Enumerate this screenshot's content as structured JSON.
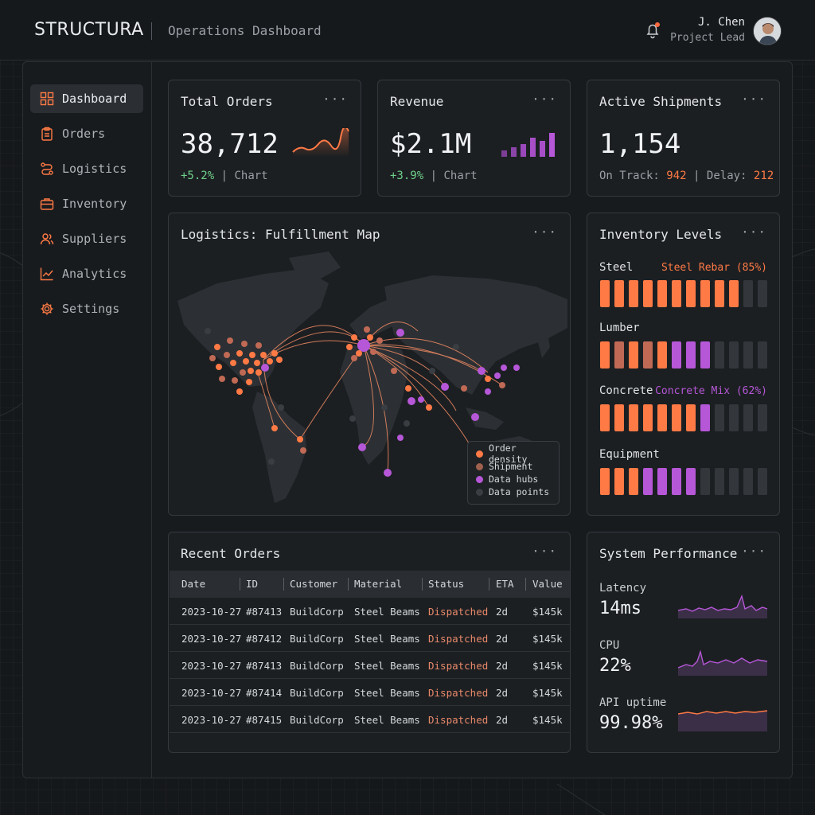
{
  "header": {
    "logo": "STRUCTURA",
    "title": "Operations Dashboard",
    "user_name": "J. Chen",
    "user_role": "Project Lead"
  },
  "sidebar": {
    "items": [
      {
        "label": "Dashboard",
        "icon": "dashboard-icon",
        "active": true
      },
      {
        "label": "Orders",
        "icon": "clipboard-icon"
      },
      {
        "label": "Logistics",
        "icon": "route-icon"
      },
      {
        "label": "Inventory",
        "icon": "briefcase-icon"
      },
      {
        "label": "Suppliers",
        "icon": "users-icon"
      },
      {
        "label": "Analytics",
        "icon": "line-chart-icon"
      },
      {
        "label": "Settings",
        "icon": "gear-icon"
      }
    ]
  },
  "kpis": {
    "orders": {
      "title": "Total Orders",
      "value": "38,712",
      "change": "+5.2%",
      "sep": "|",
      "link": "Chart"
    },
    "revenue": {
      "title": "Revenue",
      "value": "$2.1M",
      "change": "+3.9%",
      "sep": "|",
      "link": "Chart"
    },
    "shipments": {
      "title": "Active Shipments",
      "value": "1,154",
      "on_track_label": "On Track:",
      "on_track": "942",
      "sep": "|",
      "delay_label": "Delay:",
      "delay": "212"
    }
  },
  "map": {
    "title": "Logistics: Fulfillment Map",
    "legend": [
      "Order density",
      "Shipment",
      "Data hubs",
      "Data points"
    ]
  },
  "inventory": {
    "title": "Inventory Levels",
    "rows": [
      {
        "label": "Steel",
        "note": "Steel Rebar (85%)",
        "note_color": "orange"
      },
      {
        "label": "Lumber",
        "note": ""
      },
      {
        "label": "Concrete",
        "note": "Concrete Mix (62%)",
        "note_color": "purple"
      },
      {
        "label": "Equipment",
        "note": ""
      }
    ]
  },
  "orders_table": {
    "title": "Recent Orders",
    "columns": [
      "Date",
      "ID",
      "Customer",
      "Material",
      "Status",
      "ETA",
      "Value"
    ],
    "rows": [
      [
        "2023-10-27",
        "#87413",
        "BuildCorp",
        "Steel Beams",
        "Dispatched",
        "2d",
        "$145k"
      ],
      [
        "2023-10-27",
        "#87412",
        "BuildCorp",
        "Steel Beams",
        "Dispatched",
        "2d",
        "$145k"
      ],
      [
        "2023-10-27",
        "#87413",
        "BuildCorp",
        "Steel Beams",
        "Dispatched",
        "2d",
        "$145k"
      ],
      [
        "2023-10-27",
        "#87414",
        "BuildCorp",
        "Steel Beams",
        "Dispatched",
        "2d",
        "$145k"
      ],
      [
        "2023-10-27",
        "#87415",
        "BuildCorp",
        "Steel Beams",
        "Dispatched",
        "2d",
        "$145k"
      ]
    ]
  },
  "performance": {
    "title": "System Performance",
    "metrics": [
      {
        "label": "Latency",
        "value": "14ms"
      },
      {
        "label": "CPU",
        "value": "22%"
      },
      {
        "label": "API uptime",
        "value": "99.98%"
      }
    ]
  },
  "menu_glyph": "···",
  "colors": {
    "orange": "#ff7a45",
    "purple": "#b657d8",
    "green": "#6fd08a",
    "panel": "#1c1f22",
    "bar_empty": "#33373c",
    "muted_orange": "#c06a55"
  }
}
